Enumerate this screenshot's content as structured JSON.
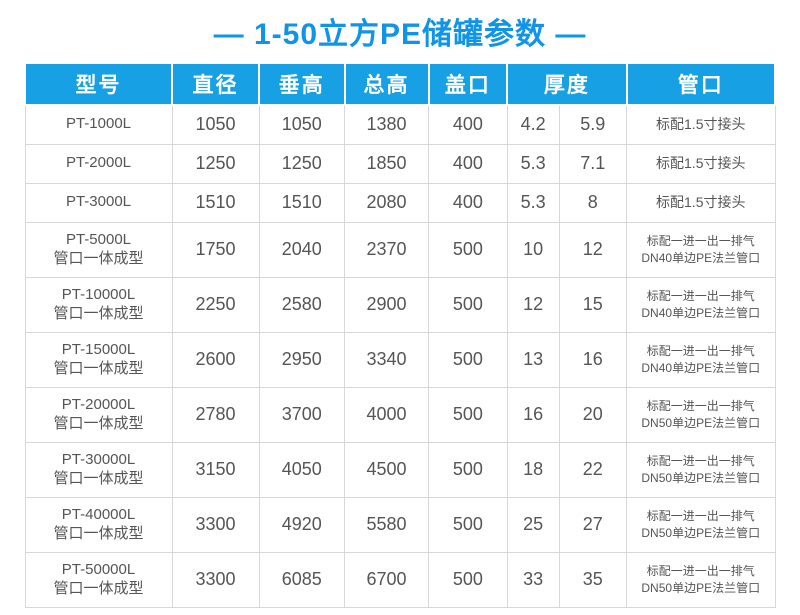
{
  "title": "— 1-50立方PE储罐参数 —",
  "accent_colors": {
    "title_blue": "#1094e8",
    "header_blue": "#17a1e4",
    "cell_border_gray": "#d7d7d7",
    "cell_text_gray": "#555555"
  },
  "table": {
    "headers": [
      "型号",
      "直径",
      "垂高",
      "总高",
      "盖口",
      "厚度",
      "管口"
    ],
    "rows": [
      {
        "model_line1": "PT-1000L",
        "model_line2": "",
        "diameter": "1050",
        "vertical_height": "1050",
        "total_height": "1380",
        "cover_opening": "400",
        "thickness_min": "4.2",
        "thickness_max": "5.9",
        "port_line1": "标配1.5寸接头",
        "port_line2": ""
      },
      {
        "model_line1": "PT-2000L",
        "model_line2": "",
        "diameter": "1250",
        "vertical_height": "1250",
        "total_height": "1850",
        "cover_opening": "400",
        "thickness_min": "5.3",
        "thickness_max": "7.1",
        "port_line1": "标配1.5寸接头",
        "port_line2": ""
      },
      {
        "model_line1": "PT-3000L",
        "model_line2": "",
        "diameter": "1510",
        "vertical_height": "1510",
        "total_height": "2080",
        "cover_opening": "400",
        "thickness_min": "5.3",
        "thickness_max": "8",
        "port_line1": "标配1.5寸接头",
        "port_line2": ""
      },
      {
        "model_line1": "PT-5000L",
        "model_line2": "管口一体成型",
        "diameter": "1750",
        "vertical_height": "2040",
        "total_height": "2370",
        "cover_opening": "500",
        "thickness_min": "10",
        "thickness_max": "12",
        "port_line1": "标配一进一出一排气",
        "port_line2": "DN40单边PE法兰管口"
      },
      {
        "model_line1": "PT-10000L",
        "model_line2": "管口一体成型",
        "diameter": "2250",
        "vertical_height": "2580",
        "total_height": "2900",
        "cover_opening": "500",
        "thickness_min": "12",
        "thickness_max": "15",
        "port_line1": "标配一进一出一排气",
        "port_line2": "DN40单边PE法兰管口"
      },
      {
        "model_line1": "PT-15000L",
        "model_line2": "管口一体成型",
        "diameter": "2600",
        "vertical_height": "2950",
        "total_height": "3340",
        "cover_opening": "500",
        "thickness_min": "13",
        "thickness_max": "16",
        "port_line1": "标配一进一出一排气",
        "port_line2": "DN40单边PE法兰管口"
      },
      {
        "model_line1": "PT-20000L",
        "model_line2": "管口一体成型",
        "diameter": "2780",
        "vertical_height": "3700",
        "total_height": "4000",
        "cover_opening": "500",
        "thickness_min": "16",
        "thickness_max": "20",
        "port_line1": "标配一进一出一排气",
        "port_line2": "DN50单边PE法兰管口"
      },
      {
        "model_line1": "PT-30000L",
        "model_line2": "管口一体成型",
        "diameter": "3150",
        "vertical_height": "4050",
        "total_height": "4500",
        "cover_opening": "500",
        "thickness_min": "18",
        "thickness_max": "22",
        "port_line1": "标配一进一出一排气",
        "port_line2": "DN50单边PE法兰管口"
      },
      {
        "model_line1": "PT-40000L",
        "model_line2": "管口一体成型",
        "diameter": "3300",
        "vertical_height": "4920",
        "total_height": "5580",
        "cover_opening": "500",
        "thickness_min": "25",
        "thickness_max": "27",
        "port_line1": "标配一进一出一排气",
        "port_line2": "DN50单边PE法兰管口"
      },
      {
        "model_line1": "PT-50000L",
        "model_line2": "管口一体成型",
        "diameter": "3300",
        "vertical_height": "6085",
        "total_height": "6700",
        "cover_opening": "500",
        "thickness_min": "33",
        "thickness_max": "35",
        "port_line1": "标配一进一出一排气",
        "port_line2": "DN50单边PE法兰管口"
      }
    ]
  }
}
